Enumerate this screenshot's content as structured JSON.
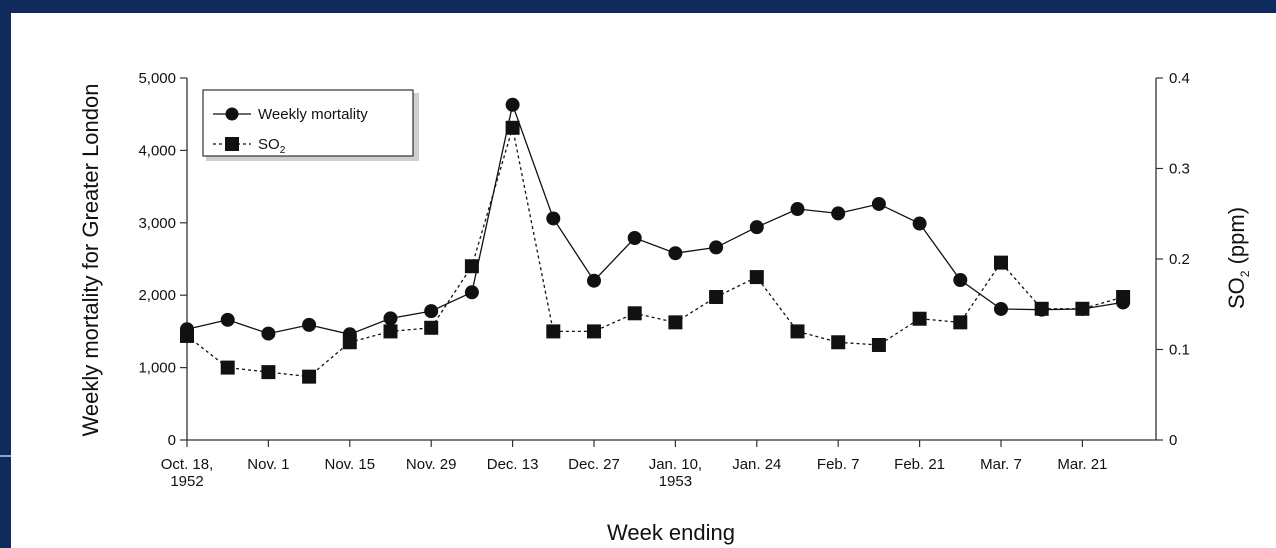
{
  "colors": {
    "background": "#0f2a5c",
    "panel": "#ffffff",
    "ink": "#111111"
  },
  "chart_data": {
    "type": "line",
    "title": "",
    "xlabel": "Week ending",
    "ylabel_left": "Weekly mortality for Greater London",
    "ylabel_right_main": "SO",
    "ylabel_right_sub": "2",
    "ylabel_right_unit": " (ppm)",
    "ylim_left": [
      0,
      5000
    ],
    "ylim_right": [
      0,
      0.4
    ],
    "y_ticks_left": [
      0,
      1000,
      2000,
      3000,
      4000,
      5000
    ],
    "y_tick_labels_left": [
      "0",
      "1,000",
      "2,000",
      "3,000",
      "4,000",
      "5,000"
    ],
    "y_ticks_right": [
      0,
      0.1,
      0.2,
      0.3,
      0.4
    ],
    "y_tick_labels_right": [
      "0",
      "0.1",
      "0.2",
      "0.3",
      "0.4"
    ],
    "x": [
      "1952-10-18",
      "1952-10-25",
      "1952-11-01",
      "1952-11-08",
      "1952-11-15",
      "1952-11-22",
      "1952-11-29",
      "1952-12-06",
      "1952-12-13",
      "1952-12-20",
      "1952-12-27",
      "1953-01-03",
      "1953-01-10",
      "1953-01-17",
      "1953-01-24",
      "1953-01-31",
      "1953-02-07",
      "1953-02-14",
      "1953-02-21",
      "1953-02-28",
      "1953-03-07",
      "1953-03-14",
      "1953-03-21",
      "1953-03-28"
    ],
    "x_tick_positions": [
      0,
      2,
      4,
      6,
      8,
      10,
      12,
      14,
      16,
      18,
      20,
      22
    ],
    "x_tick_labels": [
      [
        "Oct. 18,",
        "1952"
      ],
      [
        "Nov. 1"
      ],
      [
        "Nov. 15"
      ],
      [
        "Nov. 29"
      ],
      [
        "Dec. 13"
      ],
      [
        "Dec. 27"
      ],
      [
        "Jan. 10,",
        "1953"
      ],
      [
        "Jan. 24"
      ],
      [
        "Feb. 7"
      ],
      [
        "Feb. 21"
      ],
      [
        "Mar. 7"
      ],
      [
        "Mar. 21"
      ]
    ],
    "legend_position": "top-left",
    "series": [
      {
        "name": "Weekly mortality",
        "axis": "left",
        "marker": "circle",
        "line": "solid",
        "values": [
          1530,
          1660,
          1470,
          1590,
          1460,
          1680,
          1780,
          2040,
          4630,
          3060,
          2200,
          2790,
          2580,
          2660,
          2940,
          3190,
          3130,
          3260,
          2990,
          2210,
          1810,
          1800,
          1810,
          1900
        ]
      },
      {
        "name_main": "SO",
        "name_sub": "2",
        "axis": "right",
        "marker": "square",
        "line": "dashed",
        "values": [
          0.115,
          0.08,
          0.075,
          0.07,
          0.108,
          0.12,
          0.124,
          0.192,
          0.345,
          0.12,
          0.12,
          0.14,
          0.13,
          0.158,
          0.18,
          0.12,
          0.108,
          0.105,
          0.134,
          0.13,
          0.196,
          0.145,
          0.145,
          0.158
        ]
      }
    ]
  }
}
